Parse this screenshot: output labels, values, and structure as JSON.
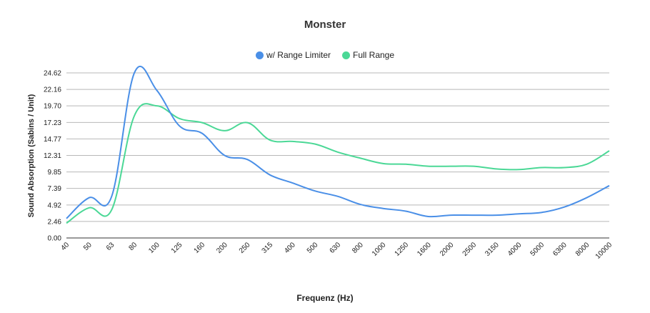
{
  "chart_data": {
    "type": "line",
    "title": "Monster",
    "xlabel": "Frequenz (Hz)",
    "ylabel": "Sound Absorption (Sabins / Unit)",
    "categories": [
      "40",
      "50",
      "63",
      "80",
      "100",
      "125",
      "160",
      "200",
      "250",
      "315",
      "400",
      "500",
      "630",
      "800",
      "1000",
      "1250",
      "1600",
      "2000",
      "2500",
      "3150",
      "4000",
      "5000",
      "6300",
      "8000",
      "10000"
    ],
    "yticks": [
      "0.00",
      "2.46",
      "4.92",
      "7.39",
      "9.85",
      "12.31",
      "14.77",
      "17.23",
      "19.70",
      "22.16",
      "24.62"
    ],
    "ylim": [
      0,
      24.62
    ],
    "grid": true,
    "legend_position": "top",
    "series": [
      {
        "name": "w/ Range Limiter",
        "color": "#4a8fe7",
        "values": [
          2.9,
          6.0,
          6.2,
          24.6,
          22.0,
          16.7,
          15.6,
          12.3,
          11.7,
          9.4,
          8.2,
          7.0,
          6.2,
          5.0,
          4.4,
          4.0,
          3.2,
          3.4,
          3.4,
          3.4,
          3.6,
          3.8,
          4.6,
          6.0,
          7.8
        ]
      },
      {
        "name": "Full Range",
        "color": "#4bd896",
        "values": [
          2.2,
          4.5,
          4.2,
          18.2,
          19.7,
          17.8,
          17.2,
          16.0,
          17.2,
          14.6,
          14.4,
          14.0,
          12.8,
          11.9,
          11.1,
          11.0,
          10.7,
          10.7,
          10.7,
          10.3,
          10.2,
          10.5,
          10.5,
          11.0,
          13.0
        ]
      }
    ]
  }
}
